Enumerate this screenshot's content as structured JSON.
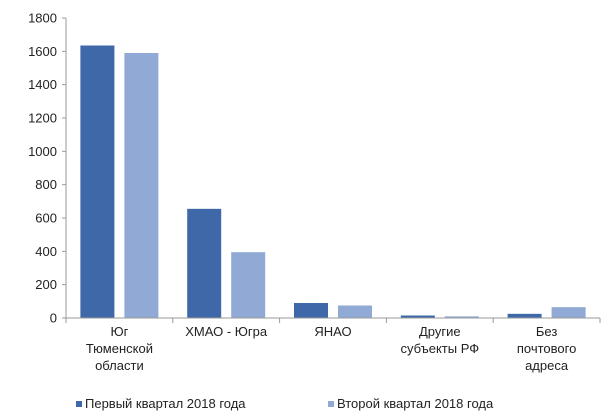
{
  "chart_data": {
    "type": "bar",
    "categories": [
      [
        "Юг",
        "Тюменской",
        "области"
      ],
      [
        "ХМАО - Югра"
      ],
      [
        "ЯНАО"
      ],
      [
        "Другие",
        "субъекты РФ"
      ],
      [
        "Без",
        "почтового",
        "адреса"
      ]
    ],
    "series": [
      {
        "name": "Первый квартал 2018 года",
        "color": "#3f68a8",
        "values": [
          1635,
          655,
          90,
          15,
          25
        ]
      },
      {
        "name": "Второй квартал 2018 года",
        "color": "#91a9d5",
        "values": [
          1590,
          395,
          75,
          10,
          65
        ]
      }
    ],
    "ylim": [
      0,
      1800
    ],
    "yticks": [
      "0",
      "200",
      "400",
      "600",
      "800",
      "1000",
      "1200",
      "1400",
      "1600",
      "1800"
    ],
    "grid": false,
    "legend_position": "bottom"
  }
}
